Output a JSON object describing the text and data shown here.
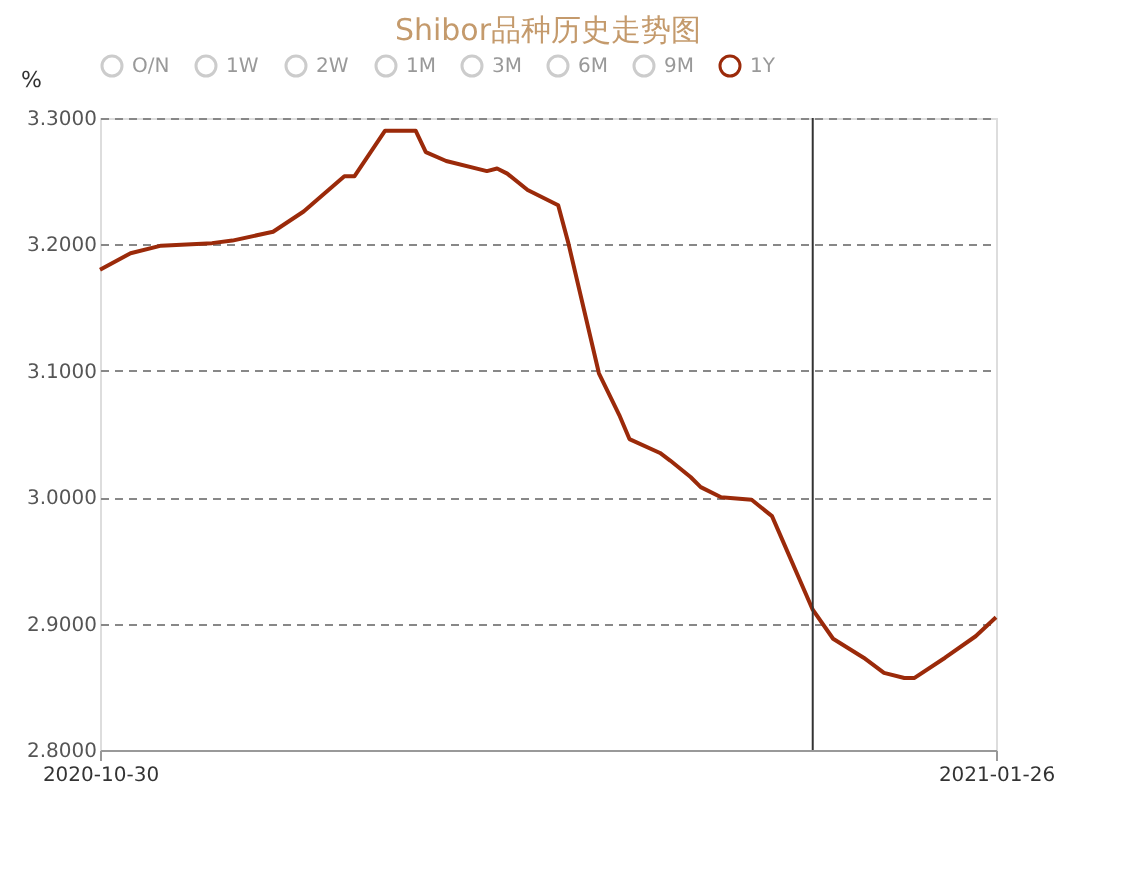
{
  "chart_data": {
    "type": "line",
    "title": "Shibor品种历史走势图",
    "ylabel": "%",
    "x": [
      "2020-10-30",
      "2020-11-02",
      "2020-11-05",
      "2020-11-10",
      "2020-11-12",
      "2020-11-16",
      "2020-11-19",
      "2020-11-23",
      "2020-11-24",
      "2020-11-27",
      "2020-11-30",
      "2020-12-01",
      "2020-12-03",
      "2020-12-07",
      "2020-12-08",
      "2020-12-09",
      "2020-12-11",
      "2020-12-14",
      "2020-12-15",
      "2020-12-18",
      "2020-12-20",
      "2020-12-21",
      "2020-12-24",
      "2020-12-25",
      "2020-12-27",
      "2020-12-28",
      "2020-12-30",
      "2021-01-02",
      "2021-01-04",
      "2021-01-08",
      "2021-01-10",
      "2021-01-13",
      "2021-01-15",
      "2021-01-17",
      "2021-01-18",
      "2021-01-21",
      "2021-01-24",
      "2021-01-26"
    ],
    "series": [
      {
        "name": "O/N",
        "color": "#cccccc",
        "values": [
          null,
          null,
          null,
          null,
          null,
          null,
          null,
          null,
          null,
          null,
          null,
          null,
          null,
          null,
          null,
          null,
          null,
          null,
          null,
          null,
          null,
          null,
          null,
          null,
          null,
          null,
          null,
          null,
          null,
          null,
          null,
          null,
          null,
          null,
          null,
          null,
          null,
          null
        ]
      },
      {
        "name": "1W",
        "color": "#cccccc",
        "values": [
          null,
          null,
          null,
          null,
          null,
          null,
          null,
          null,
          null,
          null,
          null,
          null,
          null,
          null,
          null,
          null,
          null,
          null,
          null,
          null,
          null,
          null,
          null,
          null,
          null,
          null,
          null,
          null,
          null,
          null,
          null,
          null,
          null,
          null,
          null,
          null,
          null,
          null
        ]
      },
      {
        "name": "2W",
        "color": "#cccccc",
        "values": [
          null,
          null,
          null,
          null,
          null,
          null,
          null,
          null,
          null,
          null,
          null,
          null,
          null,
          null,
          null,
          null,
          null,
          null,
          null,
          null,
          null,
          null,
          null,
          null,
          null,
          null,
          null,
          null,
          null,
          null,
          null,
          null,
          null,
          null,
          null,
          null,
          null,
          null
        ]
      },
      {
        "name": "1M",
        "color": "#cccccc",
        "values": [
          null,
          null,
          null,
          null,
          null,
          null,
          null,
          null,
          null,
          null,
          null,
          null,
          null,
          null,
          null,
          null,
          null,
          null,
          null,
          null,
          null,
          null,
          null,
          null,
          null,
          null,
          null,
          null,
          null,
          null,
          null,
          null,
          null,
          null,
          null,
          null,
          null,
          null
        ]
      },
      {
        "name": "3M",
        "color": "#cccccc",
        "values": [
          null,
          null,
          null,
          null,
          null,
          null,
          null,
          null,
          null,
          null,
          null,
          null,
          null,
          null,
          null,
          null,
          null,
          null,
          null,
          null,
          null,
          null,
          null,
          null,
          null,
          null,
          null,
          null,
          null,
          null,
          null,
          null,
          null,
          null,
          null,
          null,
          null,
          null
        ]
      },
      {
        "name": "6M",
        "color": "#cccccc",
        "values": [
          null,
          null,
          null,
          null,
          null,
          null,
          null,
          null,
          null,
          null,
          null,
          null,
          null,
          null,
          null,
          null,
          null,
          null,
          null,
          null,
          null,
          null,
          null,
          null,
          null,
          null,
          null,
          null,
          null,
          null,
          null,
          null,
          null,
          null,
          null,
          null,
          null,
          null
        ]
      },
      {
        "name": "9M",
        "color": "#cccccc",
        "values": [
          null,
          null,
          null,
          null,
          null,
          null,
          null,
          null,
          null,
          null,
          null,
          null,
          null,
          null,
          null,
          null,
          null,
          null,
          null,
          null,
          null,
          null,
          null,
          null,
          null,
          null,
          null,
          null,
          null,
          null,
          null,
          null,
          null,
          null,
          null,
          null,
          null,
          null
        ]
      },
      {
        "name": "1Y",
        "color": "#9b2a0a",
        "values": [
          3.18,
          3.193,
          3.199,
          3.201,
          3.203,
          3.21,
          3.226,
          3.254,
          3.254,
          3.29,
          3.29,
          3.273,
          3.266,
          3.258,
          3.26,
          3.256,
          3.243,
          3.231,
          3.201,
          3.098,
          3.065,
          3.046,
          3.035,
          3.029,
          3.016,
          3.008,
          3.0,
          2.998,
          2.985,
          2.911,
          2.888,
          2.873,
          2.861,
          2.857,
          2.857,
          2.873,
          2.89,
          2.905
        ]
      }
    ],
    "xlim": [
      "2020-10-30",
      "2021-01-26"
    ],
    "xticks": [
      "2020-10-30",
      "2021-01-26"
    ],
    "ylim": [
      2.8,
      3.3
    ],
    "yticks": [
      {
        "value": 2.8,
        "label": "2.8000"
      },
      {
        "value": 2.9,
        "label": "2.9000"
      },
      {
        "value": 3.0,
        "label": "3.0000"
      },
      {
        "value": 3.1,
        "label": "3.1000"
      },
      {
        "value": 3.2,
        "label": "3.2000"
      },
      {
        "value": 3.3,
        "label": "3.3000"
      }
    ],
    "ref_lines": [
      {
        "axis": "x",
        "value": "2021-01-08",
        "label": null,
        "color": "#333333"
      }
    ],
    "grid": "y",
    "legend": "top",
    "marker": "none",
    "line_style": "solid"
  }
}
